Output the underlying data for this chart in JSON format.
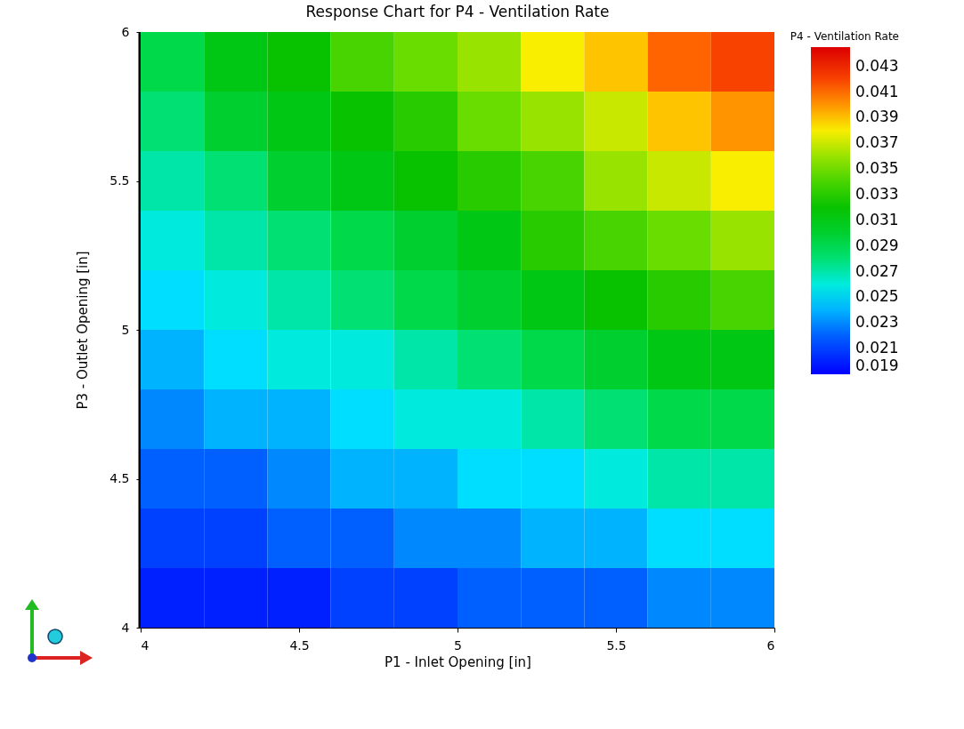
{
  "chart_data": {
    "type": "heatmap",
    "title": "Response Chart for P4 - Ventilation Rate",
    "xlabel": "P1 - Inlet Opening  [in]",
    "ylabel": "P3 - Outlet Opening  [in]",
    "clabel": "P4 - Ventilation Rate",
    "xlim": [
      4,
      6
    ],
    "xticks": [
      4,
      4.5,
      5,
      5.5,
      6
    ],
    "ylim": [
      4,
      6
    ],
    "yticks": [
      4,
      4.5,
      5,
      5.5,
      6
    ],
    "clim": [
      0.019,
      0.0445
    ],
    "cticks": [
      0.019,
      0.021,
      0.023,
      0.025,
      0.027,
      0.029,
      0.031,
      0.033,
      0.035,
      0.037,
      0.039,
      0.041,
      0.043
    ],
    "colors": [
      "#0000ff",
      "#0066ff",
      "#00eeff",
      "#00dd55",
      "#00c000",
      "#66dd00",
      "#ffee00",
      "#ff5500",
      "#dd0000"
    ],
    "cells": [
      [
        0.029,
        0.031,
        0.032,
        0.034,
        0.035,
        0.036,
        0.038,
        0.039,
        0.041,
        0.042
      ],
      [
        0.028,
        0.03,
        0.031,
        0.032,
        0.033,
        0.035,
        0.036,
        0.037,
        0.039,
        0.04
      ],
      [
        0.027,
        0.028,
        0.03,
        0.031,
        0.032,
        0.033,
        0.034,
        0.036,
        0.037,
        0.038
      ],
      [
        0.026,
        0.027,
        0.028,
        0.029,
        0.03,
        0.031,
        0.033,
        0.034,
        0.035,
        0.036
      ],
      [
        0.025,
        0.026,
        0.027,
        0.028,
        0.029,
        0.03,
        0.031,
        0.032,
        0.033,
        0.034
      ],
      [
        0.024,
        0.025,
        0.026,
        0.026,
        0.027,
        0.028,
        0.029,
        0.03,
        0.031,
        0.031
      ],
      [
        0.023,
        0.024,
        0.024,
        0.025,
        0.026,
        0.026,
        0.027,
        0.028,
        0.029,
        0.029
      ],
      [
        0.022,
        0.022,
        0.023,
        0.024,
        0.024,
        0.025,
        0.025,
        0.026,
        0.027,
        0.027
      ],
      [
        0.021,
        0.021,
        0.022,
        0.022,
        0.023,
        0.023,
        0.024,
        0.024,
        0.025,
        0.025
      ],
      [
        0.02,
        0.02,
        0.02,
        0.021,
        0.021,
        0.022,
        0.022,
        0.022,
        0.023,
        0.023
      ]
    ]
  }
}
